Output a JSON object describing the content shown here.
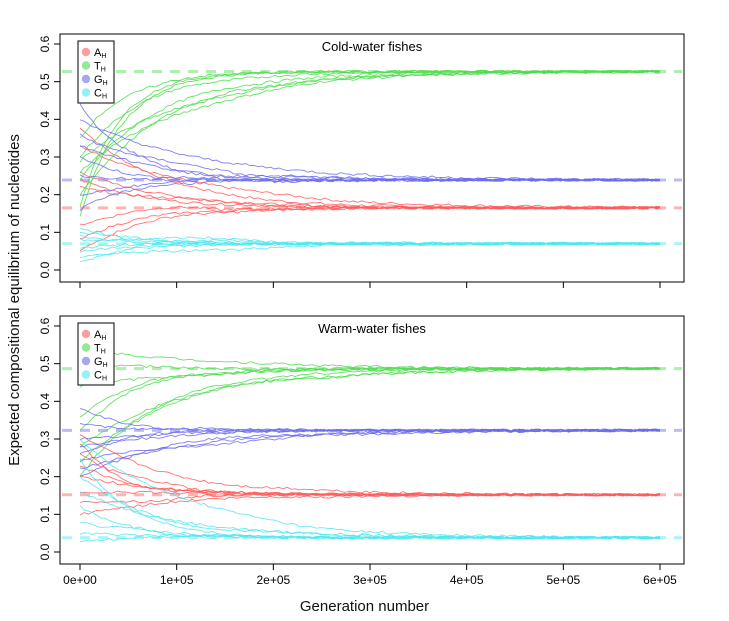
{
  "ylabel": "Expected compositional equilibrium of nucleotides",
  "xlabel": "Generation number",
  "colors": {
    "A": "#ff5a5a",
    "T": "#4ddc4d",
    "G": "#6a6af0",
    "C": "#4ee8ee"
  },
  "chart_data": [
    {
      "type": "line",
      "title": "Cold-water fishes",
      "xlim": [
        0,
        600000
      ],
      "ylim": [
        0,
        0.6
      ],
      "x_ticks": [
        0,
        100000,
        200000,
        300000,
        400000,
        500000,
        600000
      ],
      "x_tick_labels": [
        "0e+00",
        "1e+05",
        "2e+05",
        "3e+05",
        "4e+05",
        "5e+05",
        "6e+05"
      ],
      "y_ticks": [
        0.0,
        0.1,
        0.2,
        0.3,
        0.4,
        0.5,
        0.6
      ],
      "y_tick_labels": [
        "0.0",
        "0.1",
        "0.2",
        "0.3",
        "0.4",
        "0.5",
        "0.6"
      ],
      "legend": {
        "position": "top-left",
        "entries": [
          {
            "key": "A",
            "base": "A",
            "sub": "H"
          },
          {
            "key": "T",
            "base": "T",
            "sub": "H"
          },
          {
            "key": "G",
            "base": "G",
            "sub": "H"
          },
          {
            "key": "C",
            "base": "C",
            "sub": "H"
          }
        ]
      },
      "equilibrium": {
        "A": 0.165,
        "T": 0.527,
        "G": 0.239,
        "C": 0.07
      },
      "series": [
        {
          "key": "A",
          "x": [
            0,
            30000,
            80000,
            150000,
            250000,
            350000,
            450000,
            600000
          ],
          "starts": [
            0.38,
            0.33,
            0.26,
            0.24,
            0.22,
            0.12,
            0.08,
            0.05
          ]
        },
        {
          "key": "T",
          "x": [
            0,
            30000,
            80000,
            150000,
            250000,
            350000,
            450000,
            600000
          ],
          "starts": [
            0.14,
            0.2,
            0.26,
            0.3,
            0.17,
            0.24,
            0.29,
            0.35
          ]
        },
        {
          "key": "G",
          "x": [
            0,
            30000,
            80000,
            150000,
            250000,
            350000,
            450000,
            600000
          ],
          "starts": [
            0.44,
            0.4,
            0.36,
            0.3,
            0.25,
            0.2,
            0.16,
            0.33
          ]
        },
        {
          "key": "C",
          "x": [
            0,
            30000,
            80000,
            150000,
            250000,
            350000,
            450000,
            600000
          ],
          "starts": [
            0.02,
            0.035,
            0.05,
            0.06,
            0.08,
            0.09,
            0.1,
            0.11
          ]
        }
      ]
    },
    {
      "type": "line",
      "title": "Warm-water fishes",
      "xlim": [
        0,
        600000
      ],
      "ylim": [
        0,
        0.6
      ],
      "x_ticks": [
        0,
        100000,
        200000,
        300000,
        400000,
        500000,
        600000
      ],
      "x_tick_labels": [
        "0e+00",
        "1e+05",
        "2e+05",
        "3e+05",
        "4e+05",
        "5e+05",
        "6e+05"
      ],
      "y_ticks": [
        0.0,
        0.1,
        0.2,
        0.3,
        0.4,
        0.5,
        0.6
      ],
      "y_tick_labels": [
        "0.0",
        "0.1",
        "0.2",
        "0.3",
        "0.4",
        "0.5",
        "0.6"
      ],
      "legend": {
        "position": "top-left",
        "entries": [
          {
            "key": "A",
            "base": "A",
            "sub": "H"
          },
          {
            "key": "T",
            "base": "T",
            "sub": "H"
          },
          {
            "key": "G",
            "base": "G",
            "sub": "H"
          },
          {
            "key": "C",
            "base": "C",
            "sub": "H"
          }
        ]
      },
      "equilibrium": {
        "A": 0.152,
        "T": 0.487,
        "G": 0.323,
        "C": 0.038
      },
      "series": [
        {
          "key": "A",
          "x": [
            0,
            30000,
            80000,
            150000,
            250000,
            350000,
            450000,
            600000
          ],
          "starts": [
            0.1,
            0.13,
            0.16,
            0.2,
            0.23,
            0.26,
            0.29,
            0.31
          ]
        },
        {
          "key": "T",
          "x": [
            0,
            30000,
            80000,
            150000,
            250000,
            350000,
            450000,
            600000
          ],
          "starts": [
            0.44,
            0.5,
            0.54,
            0.32,
            0.28,
            0.24,
            0.2,
            0.36
          ]
        },
        {
          "key": "G",
          "x": [
            0,
            30000,
            80000,
            150000,
            250000,
            350000,
            450000,
            600000
          ],
          "starts": [
            0.2,
            0.22,
            0.24,
            0.26,
            0.28,
            0.3,
            0.34,
            0.38
          ]
        },
        {
          "key": "C",
          "x": [
            0,
            30000,
            80000,
            150000,
            250000,
            350000,
            450000,
            600000
          ],
          "starts": [
            0.03,
            0.05,
            0.08,
            0.12,
            0.16,
            0.2,
            0.25,
            0.3
          ]
        }
      ]
    }
  ]
}
